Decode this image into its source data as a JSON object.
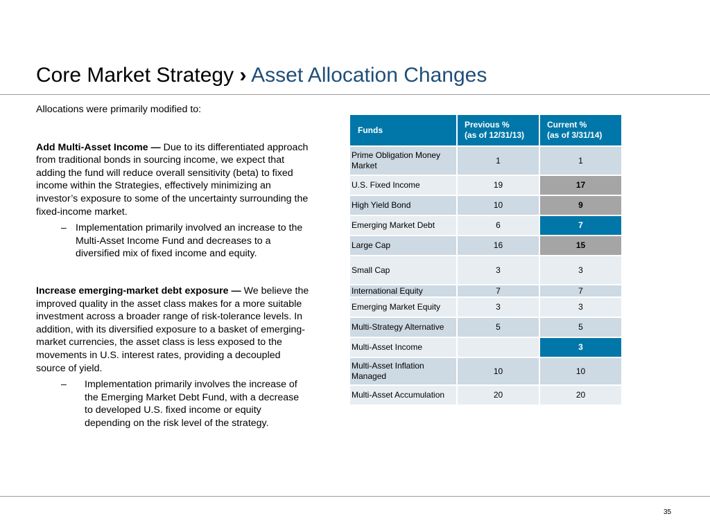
{
  "slide": {
    "title_main": "Core Market Strategy",
    "title_separator": "›",
    "title_sub": "Asset Allocation Changes",
    "page_number": "35"
  },
  "body": {
    "intro": "Allocations were primarily modified to:",
    "sections": [
      {
        "heading": "Add Multi-Asset Income —",
        "text": " Due to its differentiated approach from traditional bonds in sourcing income, we expect that adding the fund will reduce overall sensitivity (beta) to fixed income within the Strategies, effectively minimizing an investor’s exposure to some of the uncertainty surrounding the fixed-income market.",
        "bullet_dash": "–",
        "bullet": "Implementation primarily involved an increase to the Multi-Asset Income Fund and decreases to a diversified mix of fixed income and equity."
      },
      {
        "heading": "Increase emerging-market debt exposure —",
        "text": " We believe the improved quality in the asset class makes for a more suitable investment across a broader range of risk-tolerance levels. In addition, with its diversified exposure to a basket of emerging-market currencies, the asset class is less exposed to the movements in U.S. interest rates, providing a decoupled source of yield.",
        "bullet_dash": "–",
        "bullet": "Implementation primarily involves the increase of the Emerging Market Debt Fund, with a decrease to developed U.S. fixed income or equity depending on the risk level of the strategy."
      }
    ]
  },
  "table": {
    "headers": {
      "funds": "Funds",
      "previous_line1": "Previous %",
      "previous_line2": "(as of 12/31/13)",
      "current_line1": "Current %",
      "current_line2": "(as of 3/31/14)"
    },
    "highlight_colors": {
      "decrease": "#a5a5a5",
      "increase": "#0077a8"
    },
    "rows": [
      {
        "fund": "Prime Obligation Money Market",
        "previous": "1",
        "current": "1",
        "change": "none"
      },
      {
        "fund": "U.S. Fixed Income",
        "previous": "19",
        "current": "17",
        "change": "decrease"
      },
      {
        "fund": "High Yield Bond",
        "previous": "10",
        "current": "9",
        "change": "decrease"
      },
      {
        "fund": "Emerging Market Debt",
        "previous": "6",
        "current": "7",
        "change": "increase"
      },
      {
        "fund": "Large Cap",
        "previous": "16",
        "current": "15",
        "change": "decrease"
      },
      {
        "fund": "Small Cap",
        "previous": "3",
        "current": "3",
        "change": "none"
      },
      {
        "fund": "International Equity",
        "previous": "7",
        "current": "7",
        "change": "none"
      },
      {
        "fund": "Emerging Market Equity",
        "previous": "3",
        "current": "3",
        "change": "none"
      },
      {
        "fund": "Multi-Strategy Alternative",
        "previous": "5",
        "current": "5",
        "change": "none"
      },
      {
        "fund": "Multi-Asset Income",
        "previous": "",
        "current": "3",
        "change": "increase"
      },
      {
        "fund": "Multi-Asset Inflation Managed",
        "previous": "10",
        "current": "10",
        "change": "none"
      },
      {
        "fund": "Multi-Asset Accumulation",
        "previous": "20",
        "current": "20",
        "change": "none"
      }
    ]
  }
}
